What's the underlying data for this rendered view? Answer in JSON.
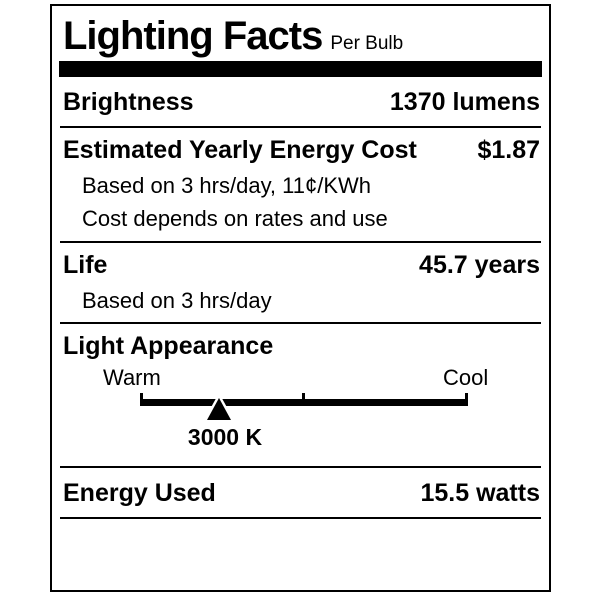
{
  "colors": {
    "ink": "#000000",
    "paper": "#ffffff"
  },
  "label": {
    "title": "Lighting Facts",
    "per_unit": "Per Bulb",
    "brightness": {
      "name": "Brightness",
      "value": "1370 lumens"
    },
    "energy_cost": {
      "name": "Estimated Yearly Energy Cost",
      "value": "$1.87",
      "basis": "Based on 3 hrs/day, 11¢/KWh",
      "disclaimer": "Cost depends on rates and use"
    },
    "life": {
      "name": "Life",
      "value": "45.7 years",
      "basis": "Based on 3 hrs/day"
    },
    "light_appearance": {
      "name": "Light Appearance",
      "warm_label": "Warm",
      "cool_label": "Cool",
      "kelvin": "3000 K",
      "marker_style": "left:156px"
    },
    "energy_used": {
      "name": "Energy Used",
      "value": "15.5 watts"
    }
  }
}
